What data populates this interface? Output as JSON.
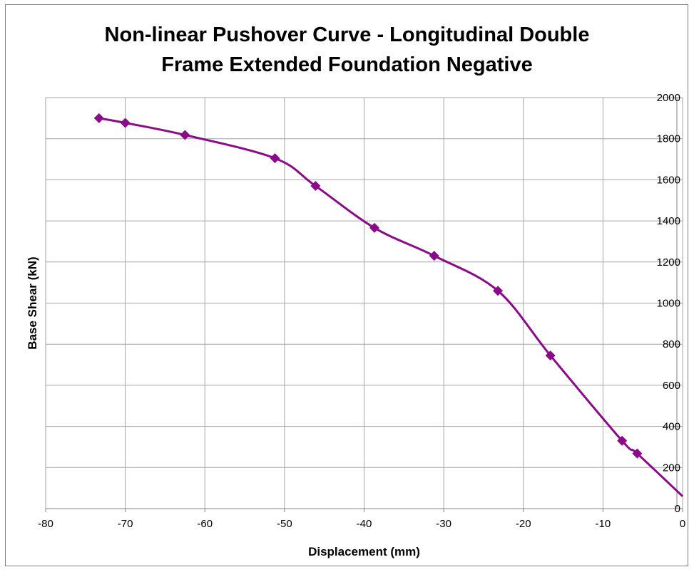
{
  "chart_data": {
    "type": "line",
    "title_lines": [
      "Non-linear Pushover Curve - Longitudinal Double",
      "Frame Extended Foundation Negative"
    ],
    "xlabel": "Displacement (mm)",
    "ylabel": "Base Shear (kN)",
    "xlim": [
      -80,
      0
    ],
    "ylim": [
      0,
      2000
    ],
    "x_ticks": [
      -80,
      -70,
      -60,
      -50,
      -40,
      -30,
      -20,
      -10,
      0
    ],
    "y_ticks": [
      0,
      200,
      400,
      600,
      800,
      1000,
      1200,
      1400,
      1600,
      1800,
      2000
    ],
    "y_axis_side": "right",
    "grid": true,
    "legend": "none",
    "smooth": true,
    "line_color": "#8B0A8A",
    "marker": "diamond",
    "series": [
      {
        "x": [
          -73.3,
          -70.0,
          -62.5,
          -51.2,
          -46.1,
          -38.7,
          -31.2,
          -23.2,
          -16.6,
          -7.6,
          -5.7
        ],
        "y": [
          1900,
          1877,
          1818,
          1705,
          1570,
          1366,
          1230,
          1060,
          745,
          330,
          268
        ]
      }
    ],
    "line_extension": {
      "x": [
        -5.7,
        0
      ],
      "y": [
        268,
        60
      ]
    }
  }
}
